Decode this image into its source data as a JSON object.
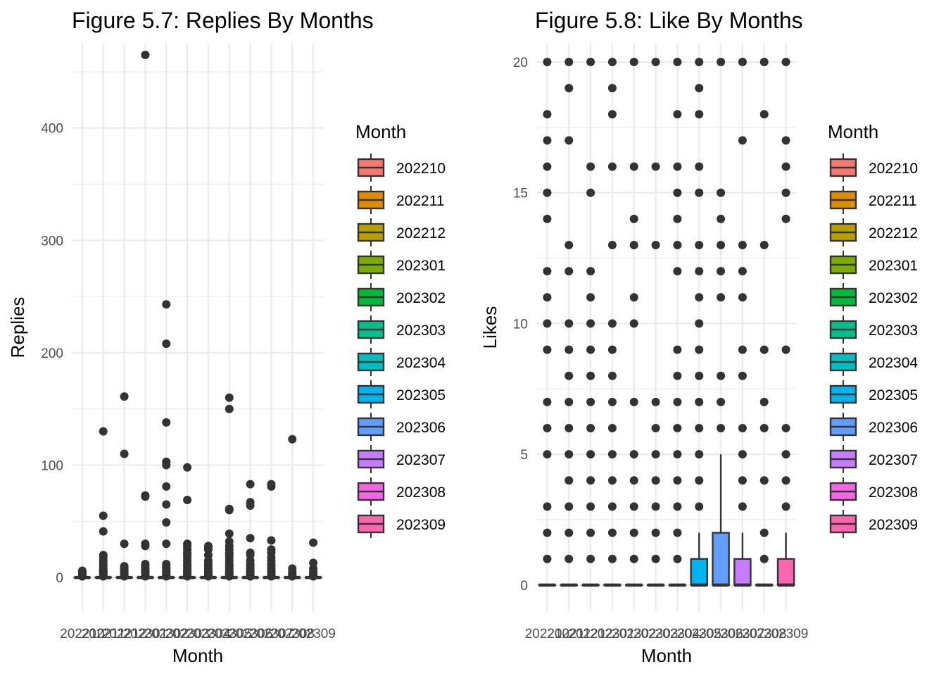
{
  "legend_title": "Month",
  "chart_data": [
    {
      "type": "box",
      "title": "Figure 5.7: Replies By Months",
      "xlabel": "Month",
      "ylabel": "Replies",
      "ylim": [
        -30,
        475
      ],
      "yticks": [
        0,
        100,
        200,
        300,
        400
      ],
      "grid": true,
      "legend_position": "right",
      "legend_title": "Month",
      "categories": [
        "202210",
        "202211",
        "202212",
        "202301",
        "202302",
        "202303",
        "202304",
        "202305",
        "202306",
        "202307",
        "202308",
        "202309"
      ],
      "colors": [
        "#F8766D",
        "#DE8C00",
        "#B79F00",
        "#7CAE00",
        "#00BA38",
        "#00C08B",
        "#00BFC4",
        "#00B4F0",
        "#619CFF",
        "#C77CFF",
        "#F564E3",
        "#FF64B0"
      ],
      "boxes": [
        {
          "q1": 0,
          "median": 0,
          "q3": 0,
          "whisker_low": 0,
          "whisker_high": 0,
          "outliers": [
            1,
            2,
            3,
            4,
            5,
            6
          ]
        },
        {
          "q1": 0,
          "median": 0,
          "q3": 0,
          "whisker_low": 0,
          "whisker_high": 0,
          "outliers": [
            1,
            2,
            3,
            4,
            5,
            6,
            7,
            8,
            10,
            12,
            15,
            18,
            20,
            41,
            55,
            130
          ]
        },
        {
          "q1": 0,
          "median": 0,
          "q3": 0,
          "whisker_low": 0,
          "whisker_high": 0,
          "outliers": [
            1,
            2,
            3,
            4,
            5,
            6,
            7,
            8,
            10,
            30,
            110,
            161
          ]
        },
        {
          "q1": 0,
          "median": 0,
          "q3": 0,
          "whisker_low": 0,
          "whisker_high": 0,
          "outliers": [
            1,
            2,
            3,
            4,
            5,
            6,
            8,
            10,
            12,
            28,
            30,
            72,
            73,
            465
          ]
        },
        {
          "q1": 0,
          "median": 0,
          "q3": 0,
          "whisker_low": 0,
          "whisker_high": 0,
          "outliers": [
            1,
            2,
            3,
            4,
            5,
            6,
            8,
            10,
            12,
            30,
            49,
            65,
            81,
            100,
            103,
            138,
            208,
            243
          ]
        },
        {
          "q1": 0,
          "median": 0,
          "q3": 0,
          "whisker_low": 0,
          "whisker_high": 0,
          "outliers": [
            1,
            2,
            3,
            4,
            5,
            6,
            8,
            10,
            12,
            15,
            18,
            20,
            22,
            25,
            28,
            30,
            69,
            98
          ]
        },
        {
          "q1": 0,
          "median": 0,
          "q3": 0,
          "whisker_low": 0,
          "whisker_high": 0,
          "outliers": [
            1,
            2,
            3,
            4,
            5,
            6,
            8,
            10,
            12,
            15,
            20,
            25,
            27,
            28
          ]
        },
        {
          "q1": 0,
          "median": 0,
          "q3": 0,
          "whisker_low": 0,
          "whisker_high": 0,
          "outliers": [
            1,
            2,
            3,
            4,
            5,
            6,
            8,
            10,
            12,
            15,
            18,
            20,
            22,
            25,
            28,
            32,
            39,
            60,
            61,
            150,
            160
          ]
        },
        {
          "q1": 0,
          "median": 0,
          "q3": 0,
          "whisker_low": 0,
          "whisker_high": 0,
          "outliers": [
            1,
            2,
            3,
            4,
            5,
            6,
            8,
            10,
            12,
            15,
            20,
            22,
            35,
            64,
            67,
            83
          ]
        },
        {
          "q1": 0,
          "median": 0,
          "q3": 0,
          "whisker_low": 0,
          "whisker_high": 0,
          "outliers": [
            1,
            2,
            3,
            4,
            5,
            6,
            8,
            10,
            12,
            15,
            18,
            22,
            25,
            33,
            81,
            83
          ]
        },
        {
          "q1": 0,
          "median": 0,
          "q3": 0,
          "whisker_low": 0,
          "whisker_high": 0,
          "outliers": [
            1,
            2,
            3,
            5,
            8,
            123
          ]
        },
        {
          "q1": 0,
          "median": 0,
          "q3": 0,
          "whisker_low": 0,
          "whisker_high": 0,
          "outliers": [
            1,
            2,
            3,
            5,
            8,
            13,
            31
          ]
        }
      ]
    },
    {
      "type": "box",
      "title": "Figure 5.8: Like By Months",
      "xlabel": "Month",
      "ylabel": "Likes",
      "ylim": [
        -1,
        20.7
      ],
      "yticks": [
        0,
        5,
        10,
        15,
        20
      ],
      "grid": true,
      "legend_position": "right",
      "legend_title": "Month",
      "categories": [
        "202210",
        "202211",
        "202212",
        "202301",
        "202302",
        "202303",
        "202304",
        "202305",
        "202306",
        "202307",
        "202308",
        "202309"
      ],
      "colors": [
        "#F8766D",
        "#DE8C00",
        "#B79F00",
        "#7CAE00",
        "#00BA38",
        "#00C08B",
        "#00BFC4",
        "#00B4F0",
        "#619CFF",
        "#C77CFF",
        "#F564E3",
        "#FF64B0"
      ],
      "boxes": [
        {
          "q1": 0,
          "median": 0,
          "q3": 0,
          "whisker_low": 0,
          "whisker_high": 0,
          "outliers": [
            1,
            2,
            3,
            5,
            6,
            7,
            9,
            10,
            11,
            12,
            14,
            15,
            16,
            17,
            18,
            20
          ]
        },
        {
          "q1": 0,
          "median": 0,
          "q3": 0,
          "whisker_low": 0,
          "whisker_high": 0,
          "outliers": [
            1,
            2,
            3,
            4,
            5,
            6,
            7,
            8,
            9,
            10,
            12,
            13,
            17,
            19,
            20
          ]
        },
        {
          "q1": 0,
          "median": 0,
          "q3": 0,
          "whisker_low": 0,
          "whisker_high": 0,
          "outliers": [
            1,
            2,
            3,
            4,
            5,
            6,
            7,
            8,
            9,
            10,
            11,
            12,
            15,
            16,
            20
          ]
        },
        {
          "q1": 0,
          "median": 0,
          "q3": 0,
          "whisker_low": 0,
          "whisker_high": 0,
          "outliers": [
            1,
            2,
            3,
            4,
            5,
            6,
            7,
            8,
            9,
            10,
            13,
            16,
            18,
            19,
            20
          ]
        },
        {
          "q1": 0,
          "median": 0,
          "q3": 0,
          "whisker_low": 0,
          "whisker_high": 0,
          "outliers": [
            1,
            2,
            3,
            4,
            5,
            7,
            10,
            11,
            13,
            14,
            16,
            20
          ]
        },
        {
          "q1": 0,
          "median": 0,
          "q3": 0,
          "whisker_low": 0,
          "whisker_high": 0,
          "outliers": [
            1,
            2,
            3,
            4,
            5,
            6,
            7,
            13,
            16,
            20
          ]
        },
        {
          "q1": 0,
          "median": 0,
          "q3": 0,
          "whisker_low": 0,
          "whisker_high": 0,
          "outliers": [
            1,
            2,
            3,
            4,
            5,
            6,
            7,
            8,
            9,
            12,
            13,
            14,
            15,
            16,
            18,
            20
          ]
        },
        {
          "q1": 0,
          "median": 0,
          "q3": 1,
          "whisker_low": 0,
          "whisker_high": 2,
          "outliers": [
            3,
            4,
            5,
            6,
            7,
            8,
            9,
            10,
            11,
            12,
            13,
            15,
            16,
            18,
            19,
            20
          ]
        },
        {
          "q1": 0,
          "median": 0,
          "q3": 2,
          "whisker_low": 0,
          "whisker_high": 5,
          "outliers": [
            6,
            7,
            8,
            11,
            12,
            13,
            14,
            15,
            20
          ]
        },
        {
          "q1": 0,
          "median": 0,
          "q3": 1,
          "whisker_low": 0,
          "whisker_high": 2,
          "outliers": [
            3,
            4,
            5,
            6,
            8,
            9,
            11,
            12,
            13,
            17,
            20
          ]
        },
        {
          "q1": 0,
          "median": 0,
          "q3": 0,
          "whisker_low": 0,
          "whisker_high": 0,
          "outliers": [
            1,
            2,
            4,
            6,
            7,
            9,
            13,
            18,
            20
          ]
        },
        {
          "q1": 0,
          "median": 0,
          "q3": 1,
          "whisker_low": 0,
          "whisker_high": 2,
          "outliers": [
            3,
            4,
            5,
            6,
            9,
            14,
            15,
            16,
            17,
            20
          ]
        }
      ]
    }
  ]
}
